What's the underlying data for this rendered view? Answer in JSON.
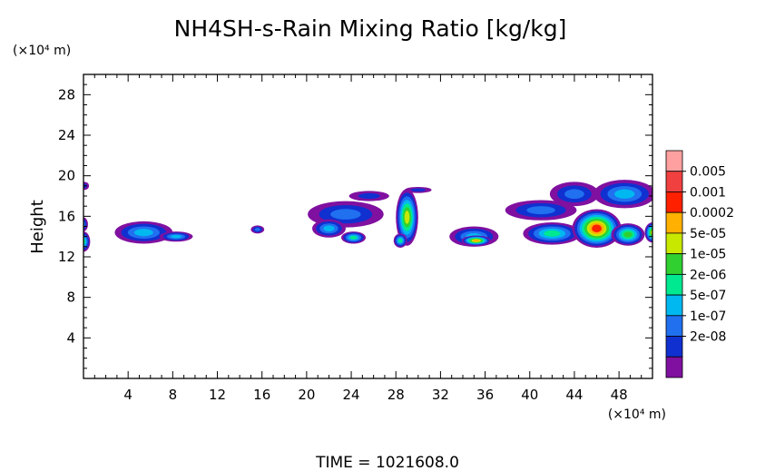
{
  "chart_data": {
    "type": "heatmap",
    "title": "NH4SH-s-Rain Mixing Ratio [kg/kg]",
    "ylabel": "Height",
    "y_unit": "(×10⁴ m)",
    "x_unit": "(×10⁴ m)",
    "footer": "TIME = 1021608.0",
    "xlim": [
      0,
      51
    ],
    "ylim": [
      0,
      30
    ],
    "x_ticks": [
      4,
      8,
      12,
      16,
      20,
      24,
      28,
      32,
      36,
      40,
      44,
      48
    ],
    "y_ticks": [
      4,
      8,
      12,
      16,
      20,
      24,
      28
    ],
    "colorbar": {
      "labels": [
        "0.005",
        "0.001",
        "0.0002",
        "5e-05",
        "1e-05",
        "2e-06",
        "5e-07",
        "1e-07",
        "2e-08"
      ],
      "colors": [
        "#ffa0a0",
        "#f04040",
        "#ff2000",
        "#ffb000",
        "#c8e800",
        "#30d030",
        "#00e890",
        "#00b8f0",
        "#2070f0",
        "#1030d0",
        "#8010a0"
      ]
    },
    "levels_key": [
      "2e-08",
      "1e-07",
      "5e-07",
      "2e-06",
      "1e-05",
      "5e-05",
      "0.0002",
      "0.001",
      "0.005"
    ],
    "cells": [
      {
        "x": 0.0,
        "y": 13.5,
        "rx": 0.6,
        "ry": 1.0,
        "peak": 4
      },
      {
        "x": 0.0,
        "y": 15.2,
        "rx": 0.4,
        "ry": 0.7,
        "peak": 2
      },
      {
        "x": 0.1,
        "y": 19.0,
        "rx": 0.4,
        "ry": 0.4,
        "peak": 1
      },
      {
        "x": 5.1,
        "y": 14.4,
        "rx": 1.3,
        "ry": 1.0,
        "peak": 7
      },
      {
        "x": 5.4,
        "y": 14.4,
        "rx": 2.6,
        "ry": 1.1,
        "peak": 3
      },
      {
        "x": 8.3,
        "y": 14.0,
        "rx": 1.5,
        "ry": 0.5,
        "peak": 3
      },
      {
        "x": 15.6,
        "y": 14.7,
        "rx": 0.6,
        "ry": 0.4,
        "peak": 2
      },
      {
        "x": 23.5,
        "y": 16.2,
        "rx": 3.4,
        "ry": 1.3,
        "peak": 2
      },
      {
        "x": 22.0,
        "y": 14.8,
        "rx": 1.5,
        "ry": 0.9,
        "peak": 3
      },
      {
        "x": 24.2,
        "y": 13.9,
        "rx": 1.1,
        "ry": 0.6,
        "peak": 4
      },
      {
        "x": 25.6,
        "y": 18.0,
        "rx": 1.8,
        "ry": 0.5,
        "peak": 1
      },
      {
        "x": 29.0,
        "y": 15.9,
        "rx": 1.0,
        "ry": 2.8,
        "peak": 6
      },
      {
        "x": 28.4,
        "y": 13.6,
        "rx": 0.6,
        "ry": 0.7,
        "peak": 4
      },
      {
        "x": 30.0,
        "y": 18.6,
        "rx": 1.2,
        "ry": 0.3,
        "peak": 1
      },
      {
        "x": 35.0,
        "y": 14.0,
        "rx": 2.2,
        "ry": 1.0,
        "peak": 3
      },
      {
        "x": 35.2,
        "y": 13.6,
        "rx": 1.3,
        "ry": 0.5,
        "peak": 7
      },
      {
        "x": 41.0,
        "y": 16.6,
        "rx": 3.2,
        "ry": 1.0,
        "peak": 2
      },
      {
        "x": 44.0,
        "y": 18.2,
        "rx": 2.2,
        "ry": 1.2,
        "peak": 2
      },
      {
        "x": 48.5,
        "y": 18.2,
        "rx": 2.8,
        "ry": 1.4,
        "peak": 3
      },
      {
        "x": 42.0,
        "y": 14.3,
        "rx": 2.6,
        "ry": 1.1,
        "peak": 4
      },
      {
        "x": 46.0,
        "y": 14.8,
        "rx": 2.2,
        "ry": 1.9,
        "peak": 8
      },
      {
        "x": 48.8,
        "y": 14.2,
        "rx": 1.5,
        "ry": 1.1,
        "peak": 5
      },
      {
        "x": 51.0,
        "y": 14.4,
        "rx": 0.7,
        "ry": 1.0,
        "peak": 6
      }
    ]
  }
}
